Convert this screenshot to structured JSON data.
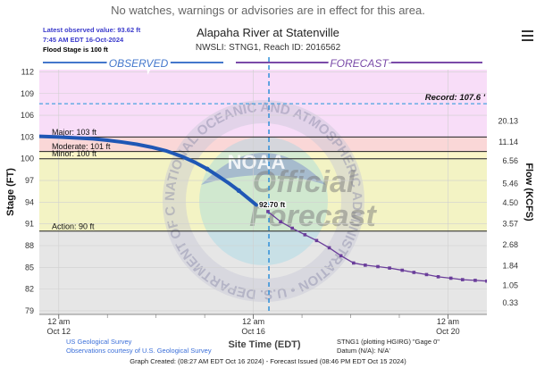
{
  "page": {
    "banner": "No watches, warnings or advisories are in effect for this area.",
    "menu_icon": "hamburger-menu-icon"
  },
  "chart_data": {
    "type": "line",
    "title": "Alapaha River at Statenville",
    "subtitle": "NWSLI: STNG1, Reach ID: 2016562",
    "info": {
      "latest_observed": "Latest observed value: 93.62 ft",
      "observed_time": "7:45 AM EDT 16-Oct-2024",
      "flood_stage": "Flood Stage is 100 ft"
    },
    "section_labels": {
      "observed": "OBSERVED",
      "forecast": "FORECAST"
    },
    "xlabel": "Site Time (EDT)",
    "ylabel": "Stage (FT)",
    "y2label": "Flow (KCFS)",
    "ylim": [
      78.5,
      112.3
    ],
    "x_days_range": [
      -0.4,
      8.8
    ],
    "yticks": [
      79,
      82,
      85,
      88,
      91,
      94,
      97,
      100,
      103,
      106,
      109,
      112
    ],
    "y2ticks": [
      {
        "stage": 80.1,
        "label": "0.33"
      },
      {
        "stage": 82.5,
        "label": "1.05"
      },
      {
        "stage": 85.2,
        "label": "1.84"
      },
      {
        "stage": 88.1,
        "label": "2.68"
      },
      {
        "stage": 91.0,
        "label": "3.57"
      },
      {
        "stage": 93.9,
        "label": "4.50"
      },
      {
        "stage": 96.6,
        "label": "5.46"
      },
      {
        "stage": 99.7,
        "label": "6.56"
      },
      {
        "stage": 102.3,
        "label": "11.14"
      },
      {
        "stage": 105.2,
        "label": "20.13"
      }
    ],
    "xticks": [
      {
        "day": 0,
        "line1": "12 am",
        "line2": "Oct 12"
      },
      {
        "day": 4,
        "line1": "12 am",
        "line2": "Oct 16"
      },
      {
        "day": 8,
        "line1": "12 am",
        "line2": "Oct 20"
      }
    ],
    "minor_xticks": [
      1,
      2,
      3,
      5,
      6,
      7
    ],
    "now_day": 4.32,
    "flood_categories": [
      {
        "name": "Record",
        "label": "Record: 107.6 '",
        "stage": 107.6
      },
      {
        "name": "Major",
        "label": "Major: 103 ft",
        "stage": 103
      },
      {
        "name": "Moderate",
        "label": "Moderate: 101 ft",
        "stage": 101
      },
      {
        "name": "Minor",
        "label": "Minor: 100 ft",
        "stage": 100
      },
      {
        "name": "Action",
        "label": "Action: 90 ft",
        "stage": 90
      }
    ],
    "zone_colors": {
      "major": "#f8ddf8",
      "moderate": "#fad7d7",
      "minor": "#fbf6c8",
      "action": "#f3f3c4",
      "normal": "#e6e6e6"
    },
    "series": [
      {
        "name": "Observed",
        "color": "#1f57b5",
        "points": [
          [
            -0.4,
            103.1
          ],
          [
            0.0,
            103.0
          ],
          [
            0.3,
            102.9
          ],
          [
            0.7,
            102.75
          ],
          [
            1.0,
            102.55
          ],
          [
            1.3,
            102.3
          ],
          [
            1.6,
            102.0
          ],
          [
            1.9,
            101.6
          ],
          [
            2.2,
            101.1
          ],
          [
            2.5,
            100.4
          ],
          [
            2.8,
            99.5
          ],
          [
            3.05,
            98.6
          ],
          [
            3.3,
            97.5
          ],
          [
            3.5,
            96.6
          ],
          [
            3.7,
            95.6
          ],
          [
            3.9,
            94.5
          ],
          [
            4.06,
            93.62
          ]
        ]
      },
      {
        "name": "Forecast",
        "color": "#6a3d9a",
        "points": [
          [
            4.3,
            92.7
          ],
          [
            4.56,
            91.3
          ],
          [
            4.8,
            90.4
          ],
          [
            5.06,
            89.5
          ],
          [
            5.3,
            88.7
          ],
          [
            5.56,
            87.7
          ],
          [
            5.8,
            86.6
          ],
          [
            6.06,
            85.6
          ],
          [
            6.3,
            85.3
          ],
          [
            6.56,
            85.1
          ],
          [
            6.8,
            84.9
          ],
          [
            7.06,
            84.6
          ],
          [
            7.3,
            84.3
          ],
          [
            7.56,
            84.0
          ],
          [
            7.8,
            83.7
          ],
          [
            8.06,
            83.5
          ],
          [
            8.3,
            83.3
          ],
          [
            8.56,
            83.2
          ],
          [
            8.8,
            83.1
          ],
          [
            9.06,
            83.05
          ],
          [
            9.3,
            83.0
          ],
          [
            9.56,
            82.95
          ],
          [
            9.8,
            82.9
          ],
          [
            10.06,
            82.85
          ],
          [
            10.3,
            82.85
          ],
          [
            10.56,
            82.8
          ],
          [
            10.8,
            82.8
          ],
          [
            11.06,
            82.8
          ],
          [
            11.3,
            82.8
          ],
          [
            11.56,
            82.8
          ]
        ]
      }
    ],
    "callout": {
      "label": "92.70 ft",
      "day": 4.3,
      "stage": 92.7
    },
    "watermark": {
      "ring_text": "NATIONAL OCEANIC AND ATMOSPHERIC ADMINISTRATION • U.S. DEPARTMENT OF COMMERCE",
      "center": "NOAA",
      "word1": "Official",
      "word2": "Forecast"
    },
    "footer": {
      "left1": "US Geological Survey",
      "left2": "Observations courtesy of U.S. Geological Survey",
      "right1": "STNG1 (plotting HGIRG) \"Gage 0\"",
      "right2": "Datum (N/A): N/A'",
      "bottom": "Graph Created: (08:27 AM EDT Oct 16 2024) - Forecast Issued (08:46 PM EDT Oct 15 2024)"
    }
  }
}
